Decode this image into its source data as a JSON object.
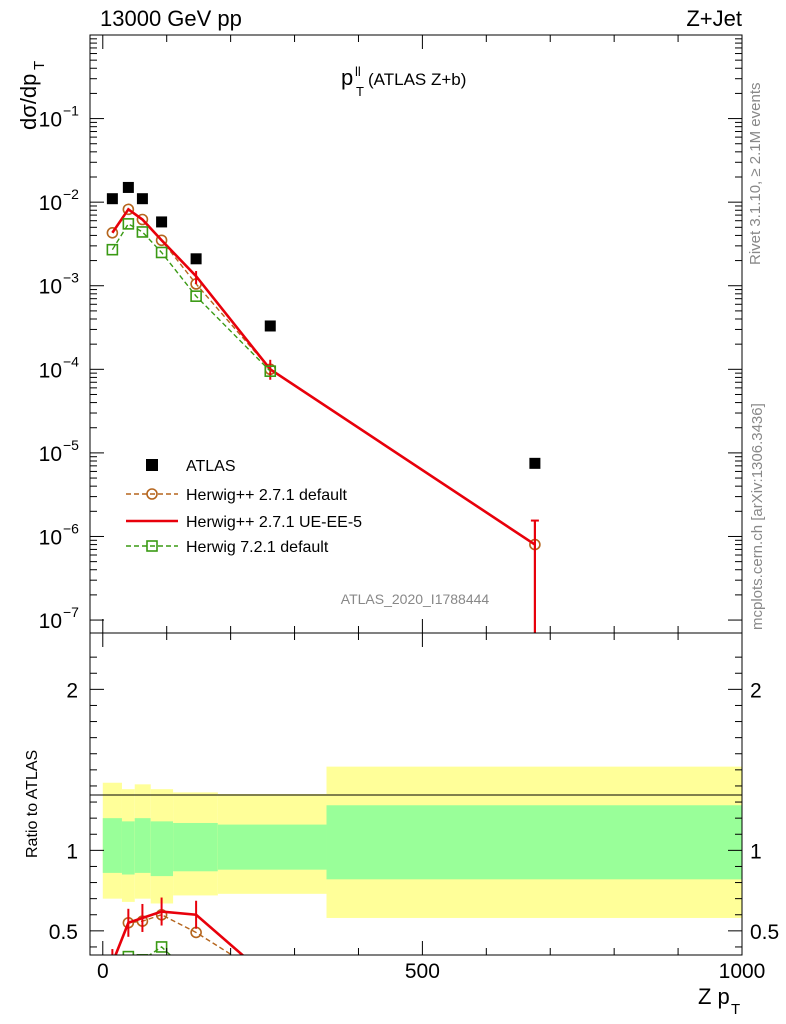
{
  "header": {
    "left": "13000 GeV pp",
    "right": "Z+Jet"
  },
  "plot_title": {
    "main": "p",
    "sup": "ll",
    "sub": "T",
    "rest": " (ATLAS Z+b)"
  },
  "side_labels": {
    "rivet": "Rivet 3.1.10, ≥ 2.1M events",
    "mcplots": "mcplots.cern.ch [arXiv:1306.3436]"
  },
  "analysis_id": "ATLAS_2020_I1788444",
  "axes": {
    "ylabel_main": "dσ/dp",
    "ylabel_main_sub": "T",
    "ylabel_ratio": "Ratio to ATLAS",
    "xlabel": "Z p",
    "xlabel_sub": "T"
  },
  "chart_data": [
    {
      "type": "scatter",
      "panel": "main",
      "yscale": "log",
      "ylim": [
        7e-08,
        1.0
      ],
      "xlim": [
        -20,
        1000
      ],
      "y_ticks": [
        {
          "v": 0.1,
          "base": "10",
          "exp": "−1"
        },
        {
          "v": 0.01,
          "base": "10",
          "exp": "−2"
        },
        {
          "v": 0.001,
          "base": "10",
          "exp": "−3"
        },
        {
          "v": 0.0001,
          "base": "10",
          "exp": "−4"
        },
        {
          "v": 1e-05,
          "base": "10",
          "exp": "−5"
        },
        {
          "v": 1e-06,
          "base": "10",
          "exp": "−6"
        },
        {
          "v": 1e-07,
          "base": "10",
          "exp": "−7"
        }
      ],
      "series": [
        {
          "name": "ATLAS",
          "style": "data",
          "color": "#000000",
          "x": [
            15,
            40,
            62,
            92,
            146,
            262,
            676
          ],
          "y": [
            0.011,
            0.015,
            0.011,
            0.0058,
            0.0021,
            0.00033,
            7.5e-06
          ]
        },
        {
          "name": "Herwig++ 2.7.1 default",
          "style": "dashed-circle",
          "color": "#b5651d",
          "x": [
            15,
            40,
            62,
            92,
            146,
            262,
            676
          ],
          "y": [
            0.0043,
            0.0082,
            0.0062,
            0.0035,
            0.00105,
            0.0001,
            8e-07
          ]
        },
        {
          "name": "Herwig++ 2.7.1 UE-EE-5",
          "style": "solid",
          "color": "#e8000b",
          "x": [
            15,
            40,
            62,
            92,
            146,
            262,
            676
          ],
          "y": [
            0.0043,
            0.0082,
            0.0062,
            0.0035,
            0.0013,
            0.0001,
            8e-07
          ]
        },
        {
          "name": "Herwig 7.2.1 default",
          "style": "dashed-square",
          "color": "#3a9a14",
          "x": [
            15,
            40,
            62,
            92,
            146,
            262
          ],
          "y": [
            0.0027,
            0.0055,
            0.0044,
            0.0025,
            0.00075,
            9.5e-05
          ]
        }
      ]
    },
    {
      "type": "line",
      "panel": "ratio",
      "ylim": [
        0.35,
        2.35
      ],
      "xlim": [
        -20,
        1000
      ],
      "x_ticks": [
        0,
        500,
        1000
      ],
      "y_ticks": [
        0.5,
        1,
        2
      ],
      "bands": {
        "edges": [
          0,
          30,
          50,
          75,
          110,
          180,
          350,
          1000
        ],
        "outer_lo": [
          0.7,
          0.68,
          0.7,
          0.67,
          0.72,
          0.73,
          0.58
        ],
        "outer_hi": [
          1.42,
          1.38,
          1.41,
          1.38,
          1.36,
          1.35,
          1.52
        ],
        "inner_lo": [
          0.86,
          0.85,
          0.86,
          0.84,
          0.87,
          0.88,
          0.82
        ],
        "inner_hi": [
          1.2,
          1.18,
          1.2,
          1.18,
          1.17,
          1.16,
          1.28
        ]
      },
      "series": [
        {
          "name": "Herwig++ 2.7.1 default",
          "x": [
            15,
            40,
            62,
            92,
            146,
            262
          ],
          "y": [
            0.3,
            0.55,
            0.56,
            0.6,
            0.49,
            0.2
          ]
        },
        {
          "name": "Herwig++ 2.7.1 UE-EE-5",
          "x": [
            15,
            40,
            62,
            92,
            146,
            262
          ],
          "y": [
            0.3,
            0.55,
            0.58,
            0.62,
            0.6,
            0.2
          ]
        },
        {
          "name": "Herwig 7.2.1 default",
          "x": [
            15,
            40,
            62,
            92,
            146
          ],
          "y": [
            0.2,
            0.34,
            0.32,
            0.4,
            0.2
          ]
        }
      ]
    }
  ]
}
